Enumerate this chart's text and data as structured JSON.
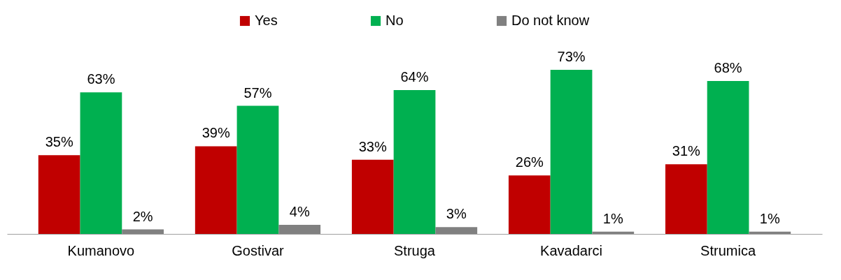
{
  "chart_data": {
    "type": "bar",
    "categories": [
      "Kumanovo",
      "Gostivar",
      "Struga",
      "Kavadarci",
      "Strumica"
    ],
    "series": [
      {
        "name": "Yes",
        "color": "#c00000",
        "values": [
          35,
          39,
          33,
          26,
          31
        ],
        "value_labels": [
          "35%",
          "39%",
          "33%",
          "26%",
          "31%"
        ]
      },
      {
        "name": "No",
        "color": "#00b050",
        "values": [
          63,
          57,
          64,
          73,
          68
        ],
        "value_labels": [
          "63%",
          "57%",
          "64%",
          "73%",
          "68%"
        ]
      },
      {
        "name": "Do not know",
        "color": "#808080",
        "values": [
          2,
          4,
          3,
          1,
          1
        ],
        "value_labels": [
          "2%",
          "4%",
          "3%",
          "1%",
          "1%"
        ]
      }
    ],
    "legend": "top",
    "grid": false
  }
}
